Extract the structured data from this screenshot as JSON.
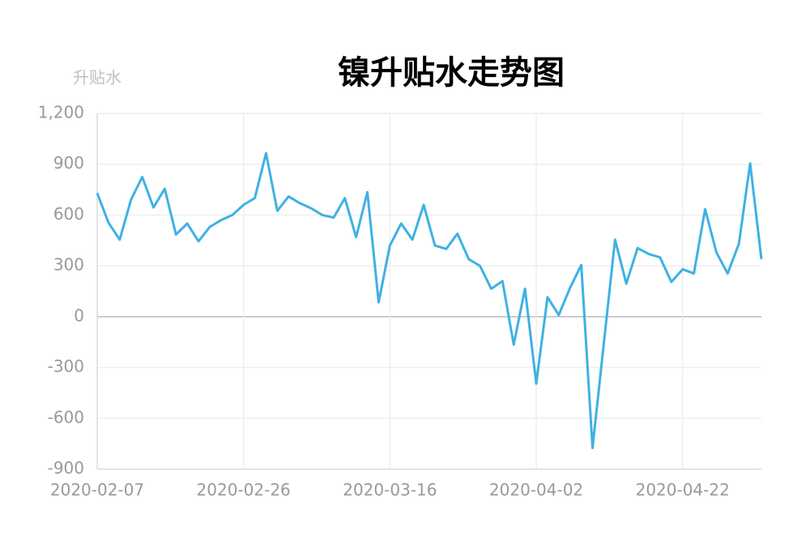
{
  "chart_data": {
    "type": "line",
    "title": "镍升贴水走势图",
    "y_label": "升贴水",
    "categories": [
      "2020-02-07",
      null,
      null,
      null,
      null,
      null,
      null,
      null,
      null,
      null,
      null,
      null,
      null,
      "2020-02-26",
      null,
      null,
      null,
      null,
      null,
      null,
      null,
      null,
      null,
      null,
      null,
      null,
      "2020-03-16",
      null,
      null,
      null,
      null,
      null,
      null,
      null,
      null,
      null,
      null,
      null,
      null,
      "2020-04-02",
      null,
      null,
      null,
      null,
      null,
      null,
      null,
      null,
      null,
      null,
      null,
      null,
      "2020-04-22",
      null,
      null,
      null,
      null,
      null,
      null,
      null
    ],
    "series": [
      {
        "name": "升贴水",
        "color": "#3fb1e3",
        "values": [
          730,
          555,
          455,
          690,
          825,
          645,
          755,
          485,
          550,
          445,
          530,
          570,
          600,
          660,
          700,
          965,
          625,
          710,
          670,
          640,
          600,
          585,
          700,
          470,
          735,
          85,
          420,
          550,
          455,
          660,
          420,
          400,
          490,
          340,
          300,
          165,
          210,
          -165,
          165,
          -395,
          115,
          10,
          170,
          305,
          -775,
          -160,
          455,
          195,
          405,
          370,
          350,
          205,
          280,
          255,
          635,
          380,
          255,
          430,
          905,
          340
        ]
      }
    ],
    "ylim": [
      -900,
      1200
    ],
    "yticks": [
      -900,
      -600,
      -300,
      0,
      300,
      600,
      900,
      {
        "value": 1200,
        "label": "1,200"
      }
    ],
    "grid": true
  }
}
